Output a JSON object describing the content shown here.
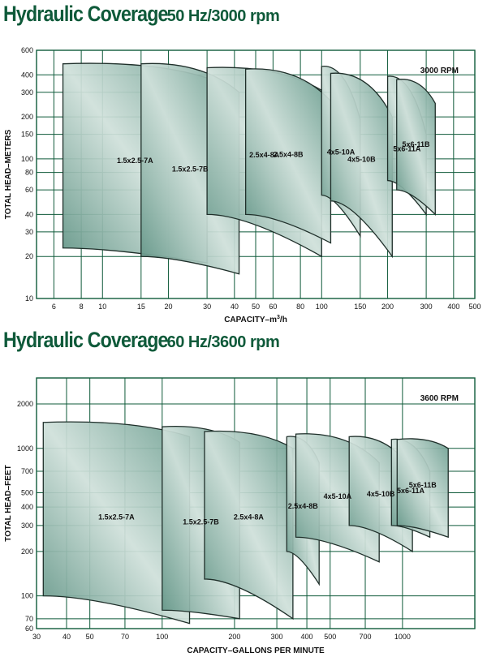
{
  "chart_data": [
    {
      "type": "area",
      "title": "Hydraulic Coverage",
      "subtitle": "50 Hz/3000 rpm",
      "rpm_label": "3000 RPM",
      "xlabel": "CAPACITY–m",
      "xlabel_sup": "3",
      "xlabel_suffix": "/h",
      "ylabel": "TOTAL HEAD–METERS",
      "x_scale": "log",
      "y_scale": "log",
      "xlim": [
        5,
        500
      ],
      "ylim": [
        10,
        600
      ],
      "x_ticks": [
        6,
        8,
        10,
        15,
        20,
        30,
        40,
        50,
        60,
        80,
        100,
        150,
        200,
        300,
        400,
        500
      ],
      "y_ticks": [
        10,
        20,
        30,
        40,
        60,
        80,
        100,
        150,
        200,
        300,
        400,
        600
      ],
      "grid": true,
      "series": [
        {
          "name": "1.5x2.5-7A",
          "x0": 6.6,
          "x1": 30,
          "top0": 480,
          "top1": 380,
          "bot0": 23,
          "bot1": 18
        },
        {
          "name": "1.5x2.5-7B",
          "x0": 15,
          "x1": 42,
          "top0": 480,
          "top1": 300,
          "bot0": 20,
          "bot1": 15
        },
        {
          "name": "2.5x4-8A",
          "x0": 30,
          "x1": 100,
          "top0": 450,
          "top1": 310,
          "bot0": 40,
          "bot1": 20
        },
        {
          "name": "2.5x4-8B",
          "x0": 45,
          "x1": 110,
          "top0": 440,
          "top1": 260,
          "bot0": 40,
          "bot1": 25
        },
        {
          "name": "4x5-10A",
          "x0": 100,
          "x1": 150,
          "top0": 460,
          "top1": 190,
          "bot0": 55,
          "bot1": 28
        },
        {
          "name": "4x5-10B",
          "x0": 110,
          "x1": 210,
          "top0": 410,
          "top1": 200,
          "bot0": 50,
          "bot1": 20
        },
        {
          "name": "5x6-11A",
          "x0": 200,
          "x1": 300,
          "top0": 390,
          "top1": 150,
          "bot0": 70,
          "bot1": 40
        },
        {
          "name": "5x6-11B",
          "x0": 220,
          "x1": 330,
          "top0": 370,
          "top1": 250,
          "bot0": 60,
          "bot1": 40
        }
      ],
      "annotations": [
        "1.5x2.5-7B",
        "2.5x4-8B",
        "4x5-10B",
        "5x6-11B"
      ]
    },
    {
      "type": "area",
      "title": "Hydraulic Coverage",
      "subtitle": "60 Hz/3600 rpm",
      "rpm_label": "3600 RPM",
      "xlabel": "CAPACITY–GALLONS PER MINUTE",
      "ylabel": "TOTAL HEAD–FEET",
      "x_scale": "log",
      "y_scale": "log",
      "xlim": [
        30,
        2000
      ],
      "ylim": [
        60,
        3000
      ],
      "x_ticks": [
        30,
        40,
        50,
        70,
        100,
        200,
        300,
        400,
        500,
        700,
        1000
      ],
      "y_ticks": [
        60,
        70,
        100,
        200,
        300,
        400,
        500,
        700,
        1000,
        2000
      ],
      "grid": true,
      "series": [
        {
          "name": "1.5x2.5-7A",
          "x0": 32,
          "x1": 130,
          "top0": 1500,
          "top1": 1200,
          "bot0": 100,
          "bot1": 65
        },
        {
          "name": "1.5x2.5-7B",
          "x0": 100,
          "x1": 210,
          "top0": 1400,
          "top1": 1100,
          "bot0": 80,
          "bot1": 70
        },
        {
          "name": "2.5x4-8A",
          "x0": 150,
          "x1": 350,
          "top0": 1300,
          "top1": 1000,
          "bot0": 130,
          "bot1": 70
        },
        {
          "name": "2.5x4-8B",
          "x0": 330,
          "x1": 450,
          "top0": 1200,
          "top1": 800,
          "bot0": 200,
          "bot1": 120
        },
        {
          "name": "4x5-10A",
          "x0": 360,
          "x1": 800,
          "top0": 1250,
          "top1": 800,
          "bot0": 250,
          "bot1": 170
        },
        {
          "name": "4x5-10B",
          "x0": 600,
          "x1": 1100,
          "top0": 1200,
          "top1": 700,
          "bot0": 300,
          "bot1": 200
        },
        {
          "name": "5x6-11A",
          "x0": 900,
          "x1": 1300,
          "top0": 1150,
          "top1": 700,
          "bot0": 300,
          "bot1": 250
        },
        {
          "name": "5x6-11B",
          "x0": 950,
          "x1": 1550,
          "top0": 1150,
          "top1": 1000,
          "bot0": 300,
          "bot1": 250
        }
      ],
      "annotations": [
        "5x6-11B",
        "5x6-11A"
      ]
    }
  ]
}
